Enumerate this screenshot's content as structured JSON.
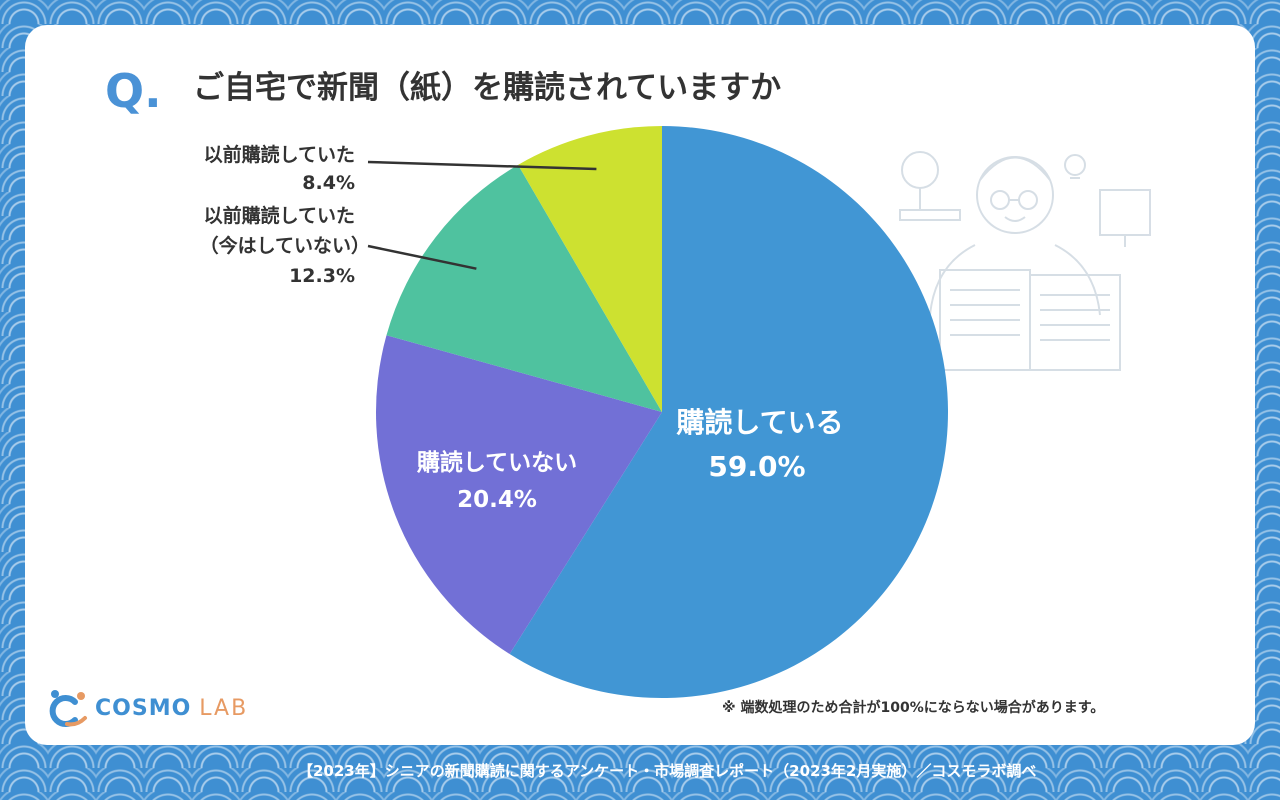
{
  "question": {
    "mark": "Q.",
    "title": "ご自宅で新聞（紙）を購読されていますか"
  },
  "chart_data": {
    "type": "pie",
    "title": "ご自宅で新聞（紙）を購読されていますか",
    "start": "12 o'clock",
    "direction": "clockwise",
    "slices": [
      {
        "label": "購読している",
        "value": 59.0,
        "value_label": "59.0%",
        "color": "#4196d4",
        "label_position": "inside"
      },
      {
        "label": "購読していない",
        "value": 20.4,
        "value_label": "20.4%",
        "color": "#7270d6",
        "label_position": "inside"
      },
      {
        "label": "以前購読していた（今はしていない）",
        "label_lines": [
          "以前購読していた",
          "（今はしていない）"
        ],
        "value": 12.3,
        "value_label": "12.3%",
        "color": "#4fc29f",
        "label_position": "outside"
      },
      {
        "label": "以前購読していた",
        "label_lines": [
          "以前購読していた"
        ],
        "value": 8.4,
        "value_label": "8.4%",
        "color": "#cde130",
        "label_position": "outside"
      }
    ]
  },
  "note": "※ 端数処理のため合計が100%にならない場合があります。",
  "footer": "【2023年】シニアの新聞購読に関するアンケート・市場調査レポート（2023年2月実施）／コスモラボ調べ",
  "logo": {
    "cosmo": "COSMO",
    "lab": "LAB",
    "accent_blue": "#3f8fd2",
    "accent_orange": "#e79a63"
  },
  "illustration": {
    "icon": "senior-reading-newspaper-icon"
  }
}
